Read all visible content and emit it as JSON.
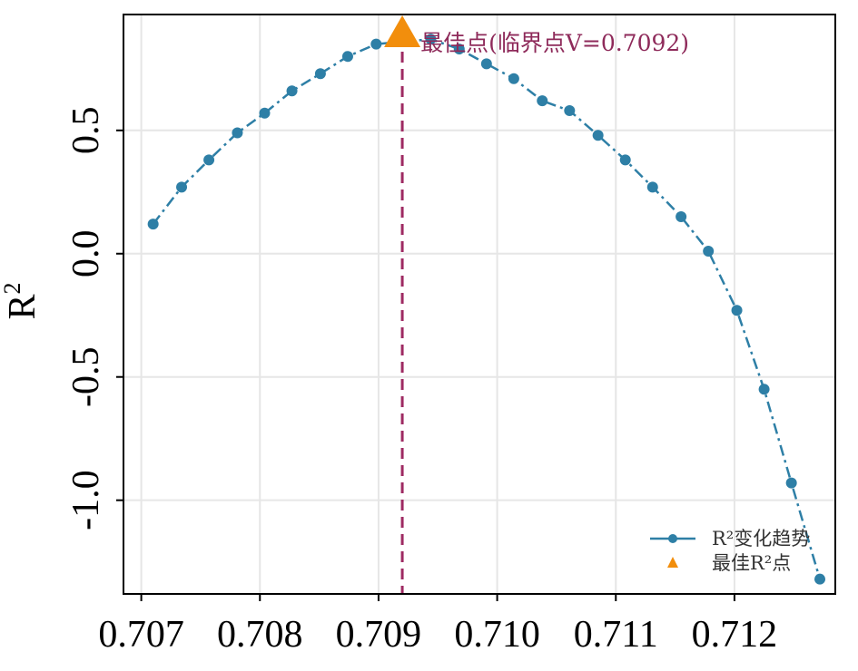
{
  "colors": {
    "series": "#2e7fa6",
    "best_point": "#f28e0c",
    "critical_line": "#9e2a62",
    "annotation": "#8e2a5a",
    "grid": "#e6e6e6",
    "frame": "#000000"
  },
  "chart_data": {
    "type": "line",
    "title": "",
    "xlabel": "",
    "ylabel": "R",
    "ylabel_superscript": "2",
    "xlim": [
      0.70685,
      0.71285
    ],
    "ylim": [
      -1.38,
      0.97
    ],
    "grid": true,
    "xticks": [
      0.707,
      0.708,
      0.709,
      0.71,
      0.711,
      0.712
    ],
    "xtick_labels": [
      "0.707",
      "0.708",
      "0.709",
      "0.710",
      "0.711",
      "0.712"
    ],
    "yticks": [
      -1.0,
      -0.5,
      0.0,
      0.5
    ],
    "ytick_labels": [
      "-1.0",
      "-0.5",
      "0.0",
      "0.5"
    ],
    "series": [
      {
        "name": "R²变化趋势",
        "marker": "circle",
        "x": [
          0.7071,
          0.70734,
          0.70757,
          0.70781,
          0.70804,
          0.70827,
          0.70851,
          0.70874,
          0.70898,
          0.70944,
          0.70968,
          0.70991,
          0.71014,
          0.71038,
          0.71061,
          0.71085,
          0.71108,
          0.71131,
          0.71155,
          0.71178,
          0.71202,
          0.71225,
          0.71248,
          0.71272
        ],
        "y": [
          0.12,
          0.27,
          0.38,
          0.49,
          0.57,
          0.66,
          0.73,
          0.8,
          0.85,
          0.87,
          0.83,
          0.77,
          0.71,
          0.62,
          0.58,
          0.48,
          0.38,
          0.27,
          0.15,
          0.01,
          -0.23,
          -0.55,
          -0.93,
          -1.32
        ]
      }
    ],
    "best_point": {
      "name": "最佳R²点",
      "x": 0.7092,
      "y": 0.9,
      "marker": "triangle"
    },
    "critical_line_x": 0.7092,
    "annotation": "最佳点(临界点V=0.7092)",
    "legend": {
      "placement": "bottom-right",
      "entries": [
        "R²变化趋势",
        "最佳R²点"
      ]
    }
  }
}
